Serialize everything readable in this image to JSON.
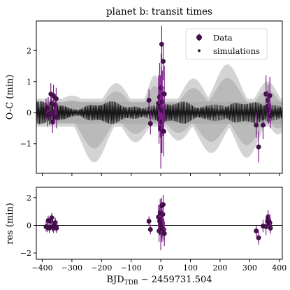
{
  "chart_data": [
    {
      "type": "scatter",
      "title": "planet b: transit times",
      "ylabel": "O-C (min)",
      "xlim": [
        -420,
        410
      ],
      "ylim": [
        -1.95,
        2.95
      ],
      "yticks": [
        -1,
        0,
        1,
        2
      ],
      "grid": false,
      "legend": {
        "position": "top-right",
        "entries": [
          {
            "label": "Data",
            "marker": "circle-errorbar",
            "color": "#4b0f52"
          },
          {
            "label": "simulations",
            "marker": "dot",
            "color": "#111111"
          }
        ]
      },
      "series": [
        {
          "name": "Data",
          "x": [
            -387,
            -383,
            -380,
            -376,
            -371,
            -368,
            -365,
            -362,
            -359,
            -356,
            -353,
            -352,
            -40,
            -35,
            -8,
            -6,
            -4,
            -2,
            0,
            1,
            2,
            3,
            4,
            5,
            7,
            8,
            10,
            12,
            322,
            330,
            345,
            355,
            360,
            362,
            364,
            366,
            368,
            370
          ],
          "y": [
            0.1,
            -0.1,
            0.15,
            -0.05,
            0.6,
            0.3,
            -0.3,
            0.55,
            0.0,
            0.25,
            0.45,
            -0.15,
            0.4,
            -0.35,
            0.3,
            -0.2,
            0.5,
            0.2,
            -0.5,
            0.8,
            0.1,
            2.2,
            -0.3,
            0.35,
            0.05,
            1.65,
            -0.6,
            0.6,
            -0.4,
            -1.1,
            -0.4,
            0.6,
            0.2,
            0.4,
            0.05,
            0.1,
            0.55,
            -0.1
          ],
          "err": [
            0.35,
            0.35,
            0.35,
            0.35,
            0.35,
            0.35,
            0.35,
            0.35,
            0.35,
            0.35,
            0.35,
            0.35,
            0.35,
            0.35,
            0.9,
            0.8,
            1.1,
            1.0,
            1.3,
            1.1,
            1.4,
            0.6,
            1.0,
            1.0,
            0.8,
            0.6,
            0.8,
            0.9,
            0.4,
            0.5,
            0.45,
            0.6,
            0.5,
            0.5,
            0.4,
            0.4,
            0.6,
            0.4
          ]
        },
        {
          "name": "simulations",
          "description": "dense black band oscillating within about ±0.35 min across all epochs"
        },
        {
          "name": "simulation envelope",
          "description": "light grey envelope of simulated O-C curves, broad lobes up to about ±1.6 min"
        }
      ],
      "colors": {
        "data": "#4b0f52",
        "data_edge": "#2a0830",
        "errorbar": "#7b1f86",
        "simulations": "#111111",
        "envelope": "#c9c9c9",
        "envelope_dark": "#a9a9a9"
      }
    },
    {
      "type": "scatter",
      "ylabel": "res (min)",
      "xlabel_main": "BJD",
      "xlabel_sub": "TDB",
      "xlabel_rest": " − 2459731.504",
      "xlim": [
        -420,
        410
      ],
      "ylim": [
        -2.45,
        2.75
      ],
      "yticks": [
        -2,
        0,
        2
      ],
      "xticks": [
        -400,
        -300,
        -200,
        -100,
        0,
        100,
        200,
        300,
        400
      ],
      "reference_line": 0,
      "grid": false,
      "series": [
        {
          "name": "residuals",
          "x": [
            -387,
            -383,
            -380,
            -376,
            -371,
            -368,
            -365,
            -362,
            -359,
            -356,
            -353,
            -352,
            -40,
            -35,
            -8,
            -6,
            -4,
            -2,
            0,
            1,
            2,
            3,
            4,
            5,
            7,
            8,
            10,
            12,
            322,
            330,
            345,
            355,
            360,
            362,
            364,
            366,
            368,
            370
          ],
          "y": [
            -0.1,
            -0.15,
            0.35,
            -0.2,
            0.3,
            0.55,
            -0.1,
            -0.2,
            0.0,
            0.2,
            -0.1,
            -0.2,
            0.3,
            -0.3,
            0.6,
            -0.4,
            0.3,
            0.9,
            -0.5,
            0.0,
            0.4,
            1.4,
            -0.2,
            0.1,
            0.8,
            1.5,
            -0.3,
            -0.6,
            -0.4,
            -0.9,
            -0.05,
            -0.1,
            0.3,
            0.6,
            0.4,
            0.1,
            0.2,
            -0.2
          ],
          "err": [
            0.35,
            0.35,
            0.35,
            0.35,
            0.35,
            0.35,
            0.35,
            0.35,
            0.35,
            0.35,
            0.35,
            0.35,
            0.35,
            0.35,
            0.9,
            0.8,
            1.0,
            1.0,
            1.3,
            1.1,
            1.3,
            0.6,
            1.0,
            1.0,
            0.8,
            0.7,
            0.8,
            0.9,
            0.4,
            0.5,
            0.45,
            0.6,
            0.5,
            0.5,
            0.4,
            0.4,
            0.6,
            0.4
          ]
        }
      ]
    }
  ]
}
